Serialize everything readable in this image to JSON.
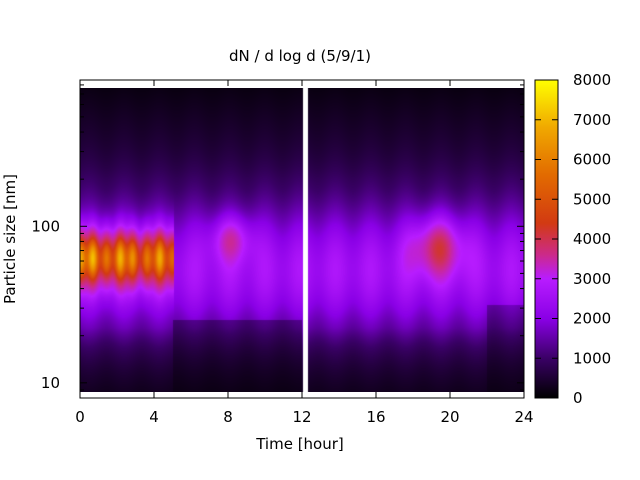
{
  "chart_data": {
    "type": "heatmap",
    "title": "dN / d log d (5/9/1)",
    "xlabel": "Time [hour]",
    "ylabel": "Particle size [nm]",
    "xlim": [
      0,
      24
    ],
    "x_ticks": [
      0,
      4,
      8,
      12,
      16,
      20,
      24
    ],
    "y_scale": "log",
    "ylim": [
      8,
      860
    ],
    "y_ticks": [
      10,
      100
    ],
    "colorbar": {
      "range": [
        0,
        8000
      ],
      "ticks": [
        0,
        1000,
        2000,
        3000,
        4000,
        5000,
        6000,
        7000,
        8000
      ],
      "colors": [
        "#000000",
        "#3a0066",
        "#8a00e6",
        "#b81cff",
        "#cc2a8a",
        "#d23a12",
        "#e26a00",
        "#f0a800",
        "#ffff00"
      ]
    },
    "gap_hours": [
      12.05,
      12.35
    ],
    "grid": false,
    "legend": "colorbar-right"
  }
}
